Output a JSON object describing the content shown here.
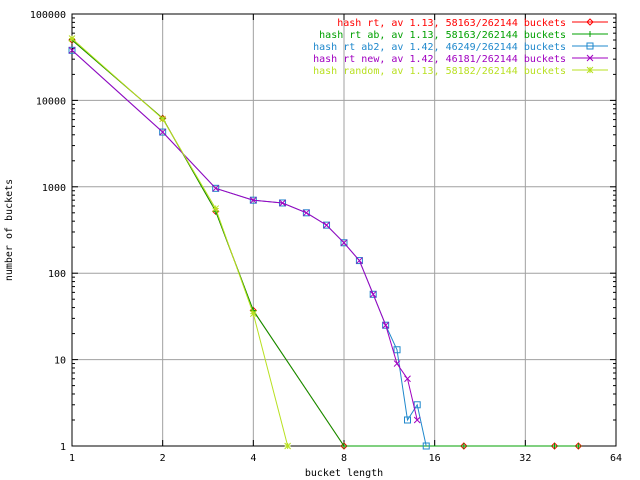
{
  "chart_data": {
    "type": "line",
    "title": "",
    "xlabel": "bucket length",
    "ylabel": "number of buckets",
    "x_scale": "log2",
    "y_scale": "log10",
    "xlim": [
      1,
      64
    ],
    "ylim": [
      1,
      100000
    ],
    "x_ticks": [
      1,
      2,
      4,
      8,
      16,
      32,
      64
    ],
    "x_tick_labels": [
      "1",
      "2",
      "4",
      "8",
      "16",
      "32",
      "64"
    ],
    "y_ticks": [
      1,
      10,
      100,
      1000,
      10000,
      100000
    ],
    "y_tick_labels": [
      "1",
      "10",
      "100",
      "1000",
      "10000",
      "100000"
    ],
    "grid": true,
    "legend_position": "top-right",
    "series": [
      {
        "name": "hash rt, av 1.13, 58163/262144 buckets",
        "color": "#ff0000",
        "marker": "diamond",
        "points": [
          [
            1,
            50000
          ],
          [
            2,
            6200
          ],
          [
            3,
            520
          ],
          [
            4,
            37
          ],
          [
            8,
            1
          ],
          [
            20,
            1
          ],
          [
            40,
            1
          ],
          [
            48,
            1
          ]
        ]
      },
      {
        "name": "hash rt ab, av 1.13, 58163/262144 buckets",
        "color": "#00a000",
        "marker": "plus",
        "points": [
          [
            1,
            50000
          ],
          [
            2,
            6200
          ],
          [
            3,
            520
          ],
          [
            4,
            37
          ],
          [
            8,
            1
          ],
          [
            20,
            1
          ],
          [
            40,
            1
          ],
          [
            48,
            1
          ]
        ]
      },
      {
        "name": "hash rt ab2, av 1.42, 46249/262144 buckets",
        "color": "#1f88cc",
        "marker": "square",
        "points": [
          [
            1,
            38000
          ],
          [
            2,
            4300
          ],
          [
            3,
            960
          ],
          [
            4,
            700
          ],
          [
            5,
            650
          ],
          [
            6,
            500
          ],
          [
            7,
            360
          ],
          [
            8,
            225
          ],
          [
            9,
            140
          ],
          [
            10,
            57
          ],
          [
            11,
            25
          ],
          [
            12,
            13
          ],
          [
            13,
            2
          ],
          [
            14,
            3
          ],
          [
            15,
            1
          ]
        ]
      },
      {
        "name": "hash rt new, av 1.42, 46181/262144 buckets",
        "color": "#a000c0",
        "marker": "cross",
        "points": [
          [
            1,
            38000
          ],
          [
            2,
            4300
          ],
          [
            3,
            960
          ],
          [
            4,
            700
          ],
          [
            5,
            650
          ],
          [
            6,
            500
          ],
          [
            7,
            360
          ],
          [
            8,
            225
          ],
          [
            9,
            140
          ],
          [
            10,
            57
          ],
          [
            11,
            25
          ],
          [
            12,
            9
          ],
          [
            13,
            6
          ],
          [
            14,
            2
          ]
        ]
      },
      {
        "name": "hash random, av 1.13, 58182/262144 buckets",
        "color": "#b8e020",
        "marker": "star",
        "points": [
          [
            1,
            52000
          ],
          [
            2,
            6100
          ],
          [
            3,
            560
          ],
          [
            4,
            34
          ],
          [
            5.2,
            1
          ]
        ]
      }
    ]
  }
}
